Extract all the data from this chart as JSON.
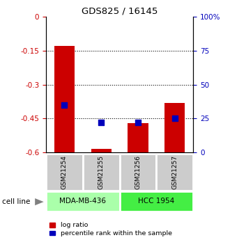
{
  "title": "GDS825 / 16145",
  "samples": [
    "GSM21254",
    "GSM21255",
    "GSM21256",
    "GSM21257"
  ],
  "bar_bottoms": [
    -0.6,
    -0.6,
    -0.6,
    -0.6
  ],
  "bar_tops": [
    -0.13,
    -0.585,
    -0.47,
    -0.38
  ],
  "percentile_ranks_pct": [
    35,
    22,
    22,
    25
  ],
  "cell_lines": [
    {
      "label": "MDA-MB-436",
      "samples": [
        0,
        1
      ],
      "color": "#aaffaa"
    },
    {
      "label": "HCC 1954",
      "samples": [
        2,
        3
      ],
      "color": "#44ee44"
    }
  ],
  "ylim_left": [
    -0.6,
    0.0
  ],
  "ylim_right": [
    0,
    100
  ],
  "bar_color_red": "#cc0000",
  "bar_color_blue": "#0000bb",
  "sample_box_color": "#cccccc",
  "legend_red": "log ratio",
  "legend_blue": "percentile rank within the sample",
  "xlabel_cell": "cell line",
  "yticks_left": [
    0,
    -0.15,
    -0.3,
    -0.45,
    -0.6
  ],
  "yticks_right": [
    0,
    25,
    50,
    75,
    100
  ],
  "bar_width": 0.55
}
